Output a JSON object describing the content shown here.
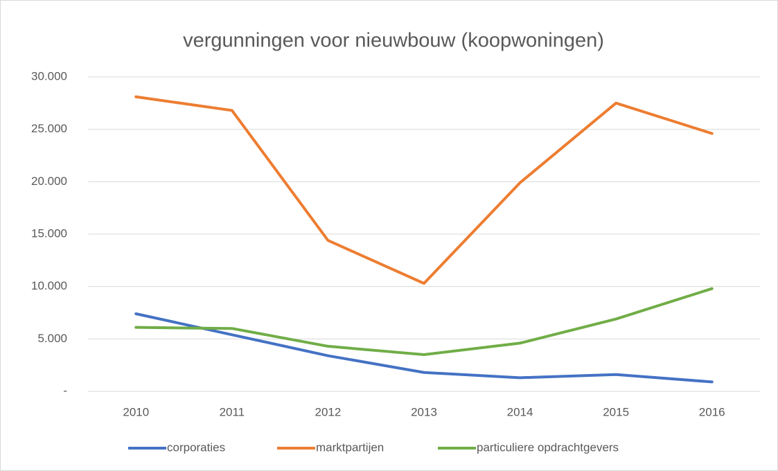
{
  "chart_data": {
    "type": "line",
    "title": "vergunningen voor nieuwbouw (koopwoningen)",
    "categories": [
      "2010",
      "2011",
      "2012",
      "2013",
      "2014",
      "2015",
      "2016"
    ],
    "series": [
      {
        "name": "corporaties",
        "color": "#4472c4",
        "values": [
          7400,
          5400,
          3400,
          1800,
          1300,
          1600,
          900
        ]
      },
      {
        "name": "marktpartijen",
        "color": "#ed7d31",
        "values": [
          28100,
          26800,
          14400,
          10300,
          19900,
          27500,
          24600
        ]
      },
      {
        "name": "particuliere opdrachtgevers",
        "color": "#70ad47",
        "values": [
          6100,
          6000,
          4300,
          3500,
          4600,
          6900,
          9800
        ]
      }
    ],
    "ylim": [
      0,
      30000
    ],
    "yticks": [
      {
        "value": 0,
        "label": "-"
      },
      {
        "value": 5000,
        "label": "5.000"
      },
      {
        "value": 10000,
        "label": "10.000"
      },
      {
        "value": 15000,
        "label": "15.000"
      },
      {
        "value": 20000,
        "label": "20.000"
      },
      {
        "value": 25000,
        "label": "25.000"
      },
      {
        "value": 30000,
        "label": "30.000"
      }
    ],
    "grid": true,
    "legend": "bottom"
  }
}
